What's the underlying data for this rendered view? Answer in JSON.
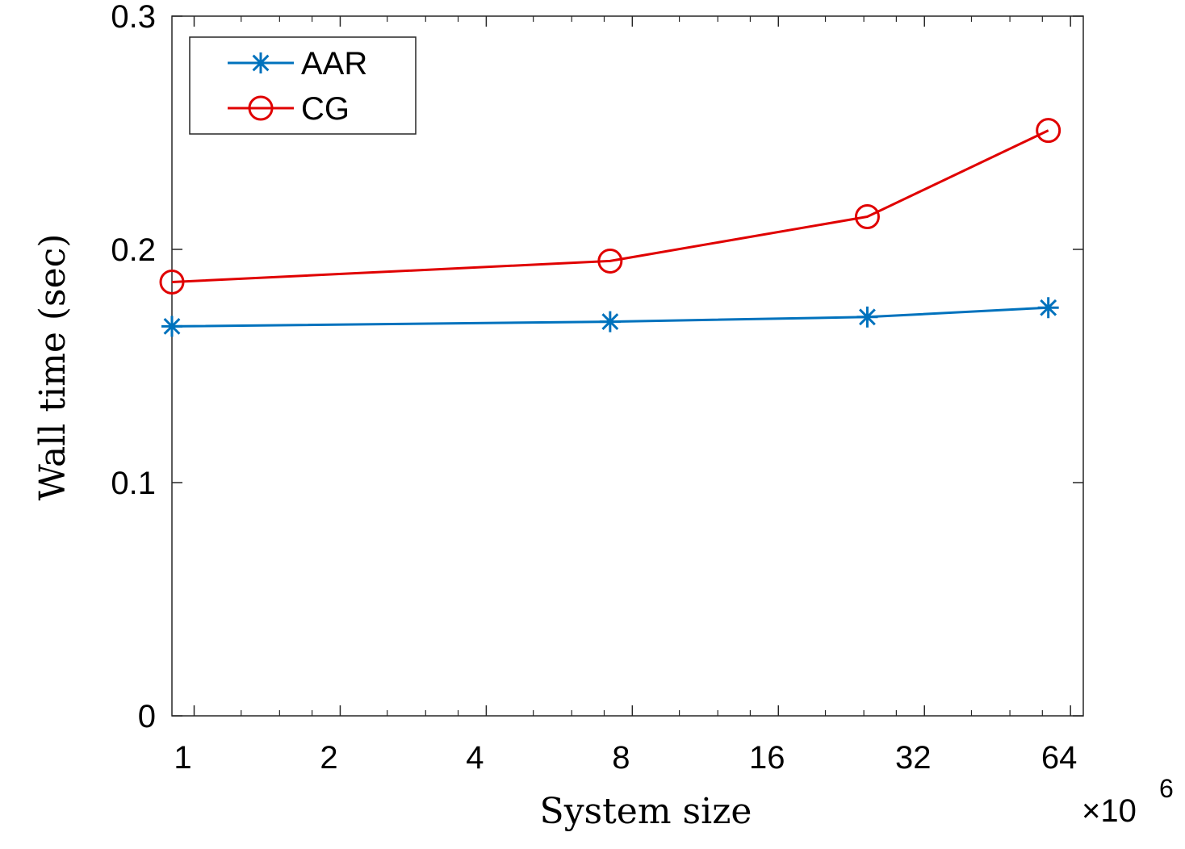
{
  "chart_data": {
    "type": "line",
    "title": "",
    "xlabel": "System size",
    "ylabel": "Wall time (sec)",
    "x_scale": "log2",
    "x_multiplier": "×10",
    "x_multiplier_exponent": "6",
    "xlim": [
      0.9,
      68
    ],
    "ylim": [
      0,
      0.3
    ],
    "x_ticks": [
      1,
      2,
      4,
      8,
      16,
      32,
      64
    ],
    "x_tick_labels": [
      "1",
      "2",
      "4",
      "8",
      "16",
      "32",
      "64"
    ],
    "y_ticks": [
      0,
      0.1,
      0.2,
      0.3
    ],
    "y_tick_labels": [
      "0",
      "0.1",
      "0.2",
      "0.3"
    ],
    "grid": false,
    "legend_position": "top-left",
    "series": [
      {
        "name": "AAR",
        "color": "#0072BD",
        "marker": "asterisk",
        "x": [
          0.9,
          7.2,
          24.4,
          57.6
        ],
        "y": [
          0.167,
          0.169,
          0.171,
          0.175
        ]
      },
      {
        "name": "CG",
        "color": "#E00000",
        "marker": "circle",
        "x": [
          0.9,
          7.2,
          24.4,
          57.6
        ],
        "y": [
          0.186,
          0.195,
          0.214,
          0.251
        ]
      }
    ]
  }
}
